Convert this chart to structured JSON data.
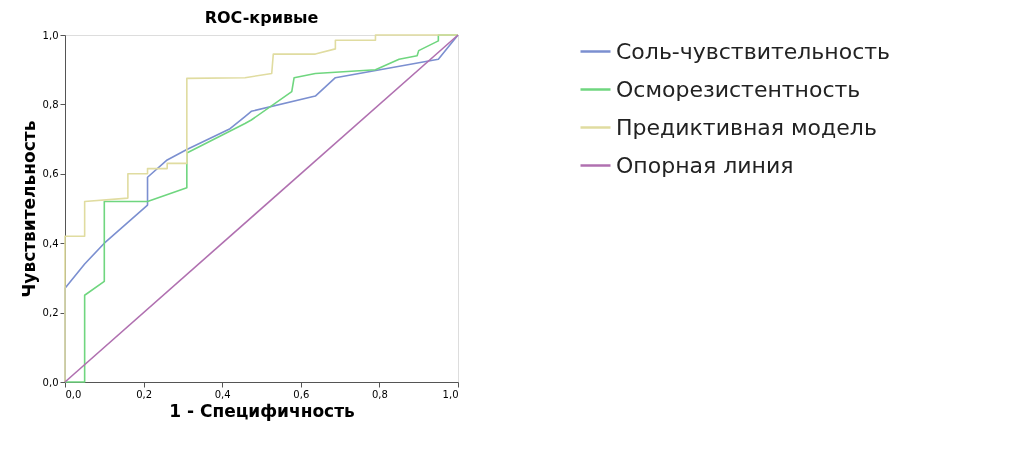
{
  "chart_data": {
    "type": "line",
    "title": "ROC-кривые",
    "xlabel": "1 - Специфичность",
    "ylabel": "Чувствительность",
    "xlim": [
      0,
      1
    ],
    "ylim": [
      0,
      1
    ],
    "xticks": [
      {
        "value": 0,
        "label": "0,0"
      },
      {
        "value": 0.2,
        "label": "0,2"
      },
      {
        "value": 0.4,
        "label": "0,4"
      },
      {
        "value": 0.6,
        "label": "0,6"
      },
      {
        "value": 0.8,
        "label": "0,8"
      },
      {
        "value": 1,
        "label": "1,0"
      }
    ],
    "yticks": [
      {
        "value": 0,
        "label": "0,0"
      },
      {
        "value": 0.2,
        "label": "0,2"
      },
      {
        "value": 0.4,
        "label": "0,4"
      },
      {
        "value": 0.6,
        "label": "0,6"
      },
      {
        "value": 0.8,
        "label": "0,8"
      },
      {
        "value": 1,
        "label": "1,0"
      }
    ],
    "grid": false,
    "legend": "right",
    "marker": "none",
    "line_style": "solid",
    "series": [
      {
        "name": "Соль-чувствительность",
        "color": "#7b8fd0",
        "x": [
          0,
          0,
          0.05,
          0.1,
          0.21,
          0.21,
          0.26,
          0.31,
          0.42,
          0.458,
          0.474,
          0.637,
          0.688,
          0.95,
          1
        ],
        "values": [
          0,
          0.27,
          0.34,
          0.4,
          0.51,
          0.59,
          0.64,
          0.67,
          0.73,
          0.765,
          0.78,
          0.824,
          0.877,
          0.93,
          1
        ]
      },
      {
        "name": "Осморезистентность",
        "color": "#6fd67f",
        "x": [
          0,
          0.05,
          0.05,
          0.1,
          0.1,
          0.21,
          0.31,
          0.31,
          0.458,
          0.474,
          0.577,
          0.583,
          0.637,
          0.79,
          0.85,
          0.896,
          0.9,
          0.95,
          0.95,
          1
        ],
        "values": [
          0,
          0,
          0.25,
          0.29,
          0.52,
          0.52,
          0.56,
          0.66,
          0.745,
          0.755,
          0.837,
          0.877,
          0.889,
          0.9,
          0.93,
          0.94,
          0.955,
          0.983,
          1,
          1
        ]
      },
      {
        "name": "Предиктивная модель",
        "color": "#e0dca0",
        "x": [
          0,
          0,
          0.05,
          0.05,
          0.16,
          0.16,
          0.21,
          0.21,
          0.26,
          0.26,
          0.31,
          0.31,
          0.458,
          0.526,
          0.53,
          0.637,
          0.688,
          0.688,
          0.79,
          0.79,
          1
        ],
        "values": [
          0,
          0.42,
          0.42,
          0.52,
          0.53,
          0.6,
          0.6,
          0.615,
          0.615,
          0.63,
          0.63,
          0.875,
          0.877,
          0.889,
          0.945,
          0.945,
          0.96,
          0.985,
          0.985,
          1,
          1
        ]
      },
      {
        "name": "Опорная линия",
        "color": "#b070b0",
        "x": [
          0,
          1
        ],
        "values": [
          0,
          1
        ]
      }
    ]
  }
}
